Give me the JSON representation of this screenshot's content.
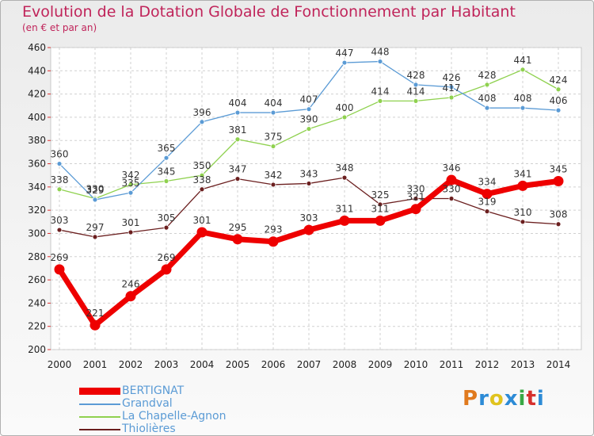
{
  "header": {
    "title": "Evolution de la Dotation Globale de Fonctionnement par Habitant",
    "subtitle": "(en € et par an)"
  },
  "logo": {
    "text": "Proxiti",
    "colors": [
      "#e07a1e",
      "#2d8bd6",
      "#e0c31e",
      "#2d8bd6",
      "#39a845",
      "#d6302d",
      "#2d8bd6"
    ]
  },
  "chart_data": {
    "type": "line",
    "title": "Evolution de la Dotation Globale de Fonctionnement par Habitant",
    "subtitle": "(en € et par an)",
    "x": [
      "2000",
      "2001",
      "2002",
      "2003",
      "2004",
      "2005",
      "2006",
      "2007",
      "2008",
      "2009",
      "2010",
      "2011",
      "2012",
      "2013",
      "2014"
    ],
    "ylim": [
      200,
      460
    ],
    "yticks": [
      200,
      220,
      240,
      260,
      280,
      300,
      320,
      340,
      360,
      380,
      400,
      420,
      440,
      460
    ],
    "grid": true,
    "legend_position": "bottom-left",
    "series": [
      {
        "name": "BERTIGNAT",
        "color": "#ee0000",
        "values": [
          269,
          221,
          246,
          269,
          301,
          295,
          293,
          303,
          311,
          311,
          321,
          346,
          334,
          341,
          345
        ]
      },
      {
        "name": "Grandval",
        "color": "#5b9bd5",
        "values": [
          360,
          329,
          335,
          365,
          396,
          404,
          404,
          407,
          447,
          448,
          428,
          426,
          408,
          408,
          406
        ]
      },
      {
        "name": "La Chapelle-Agnon",
        "color": "#8fd14f",
        "values": [
          338,
          330,
          342,
          345,
          350,
          381,
          375,
          390,
          400,
          414,
          414,
          417,
          428,
          441,
          424
        ]
      },
      {
        "name": "Thiolières",
        "color": "#6b1f1f",
        "values": [
          303,
          297,
          301,
          305,
          338,
          347,
          342,
          343,
          348,
          325,
          330,
          330,
          319,
          310,
          308
        ]
      }
    ]
  }
}
